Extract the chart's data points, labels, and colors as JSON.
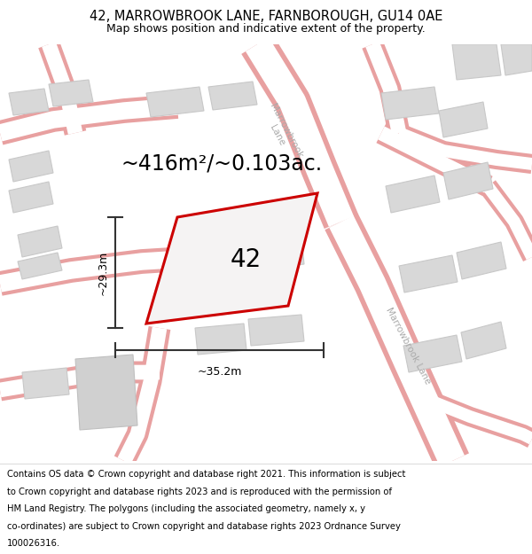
{
  "title_line1": "42, MARROWBROOK LANE, FARNBOROUGH, GU14 0AE",
  "title_line2": "Map shows position and indicative extent of the property.",
  "area_text": "~416m²/~0.103ac.",
  "label_42": "42",
  "dim_width": "~35.2m",
  "dim_height": "~29.3m",
  "road_label_upper": "Marrowbrook\nLane",
  "road_label_lower": "Marrowbrook Lane",
  "footer_lines": [
    "Contains OS data © Crown copyright and database right 2021. This information is subject",
    "to Crown copyright and database rights 2023 and is reproduced with the permission of",
    "HM Land Registry. The polygons (including the associated geometry, namely x, y",
    "co-ordinates) are subject to Crown copyright and database rights 2023 Ordnance Survey",
    "100026316."
  ],
  "map_bg": "#eeecec",
  "building_color": "#d8d8d8",
  "building_edge": "#c8c8c8",
  "road_fill": "#ffffff",
  "road_edge": "#e8a0a0",
  "plot_edge": "#cc0000",
  "plot_fill": "#f5f3f3",
  "dim_color": "#333333",
  "road_label_color": "#aaaaaa",
  "title_fontsize": 10.5,
  "subtitle_fontsize": 9,
  "area_fontsize": 17,
  "label_fontsize": 20,
  "dim_fontsize": 9,
  "road_label_fontsize": 7.5,
  "footer_fontsize": 7.2
}
